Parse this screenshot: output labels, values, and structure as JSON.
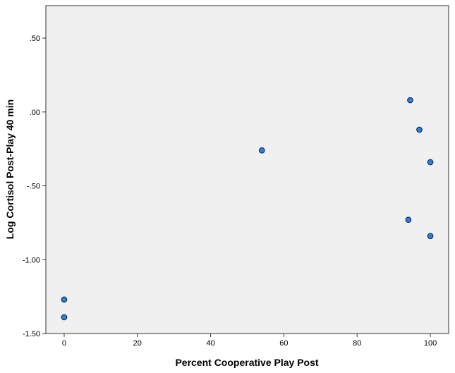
{
  "chart_data": {
    "type": "scatter",
    "xlabel": "Percent Cooperative Play Post",
    "ylabel": "Log Cortisol Post-Play 40 min",
    "xlim": [
      -5,
      105
    ],
    "ylim": [
      -1.5,
      0.72
    ],
    "xticks": [
      0,
      20,
      40,
      60,
      80,
      100
    ],
    "xtick_labels": [
      "0",
      "20",
      "40",
      "60",
      "80",
      "100"
    ],
    "yticks": [
      -1.5,
      -1.0,
      -0.5,
      0.0,
      0.5
    ],
    "ytick_labels": [
      "-1.50",
      "-1.00",
      "-.50",
      ".00",
      ".50"
    ],
    "grid": false,
    "colors": {
      "plot_background": "#f0f0f0",
      "marker_fill": "#2f7fd6",
      "marker_edge": "#0d2a5c",
      "frame": "#333333"
    },
    "points": [
      {
        "x": 0,
        "y": -1.27
      },
      {
        "x": 0,
        "y": -1.39
      },
      {
        "x": 54,
        "y": -0.26
      },
      {
        "x": 94.5,
        "y": 0.08
      },
      {
        "x": 97,
        "y": -0.12
      },
      {
        "x": 100,
        "y": -0.34
      },
      {
        "x": 94,
        "y": -0.73
      },
      {
        "x": 100,
        "y": -0.84
      }
    ]
  }
}
